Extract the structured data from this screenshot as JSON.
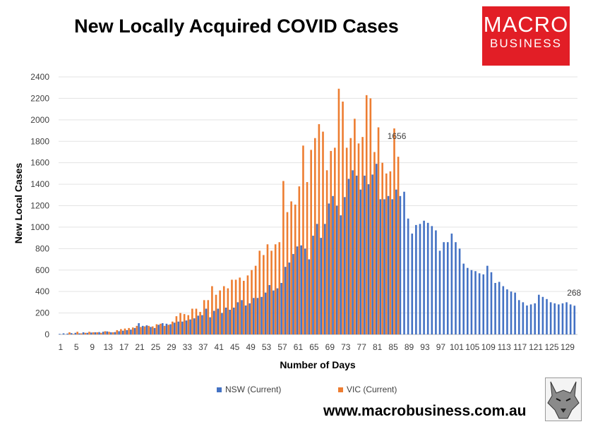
{
  "chart_data": {
    "type": "bar",
    "title": "New Locally Acquired COVID Cases",
    "xlabel": "Number of Days",
    "ylabel": "New Local Cases",
    "ylim": [
      0,
      2400
    ],
    "yticks": [
      0,
      200,
      400,
      600,
      800,
      1000,
      1200,
      1400,
      1600,
      1800,
      2000,
      2200,
      2400
    ],
    "xtick_labels": [
      1,
      5,
      9,
      13,
      17,
      21,
      25,
      29,
      33,
      37,
      41,
      45,
      49,
      53,
      57,
      61,
      65,
      69,
      73,
      77,
      81,
      85,
      89,
      93,
      97,
      101,
      105,
      109,
      113,
      117,
      121,
      125,
      129
    ],
    "legend_position": "bottom",
    "series": [
      {
        "name": "NSW (Current)",
        "color": "#4472c4",
        "end_label": "268",
        "values": [
          5,
          10,
          8,
          12,
          15,
          10,
          20,
          15,
          18,
          20,
          22,
          25,
          28,
          20,
          22,
          30,
          35,
          40,
          45,
          60,
          105,
          80,
          85,
          70,
          60,
          90,
          105,
          100,
          95,
          110,
          120,
          120,
          130,
          140,
          150,
          175,
          180,
          240,
          160,
          220,
          240,
          200,
          250,
          230,
          250,
          300,
          320,
          270,
          290,
          340,
          340,
          350,
          390,
          460,
          410,
          430,
          480,
          630,
          670,
          750,
          820,
          830,
          800,
          700,
          920,
          1030,
          900,
          1030,
          1220,
          1290,
          1200,
          1110,
          1280,
          1450,
          1530,
          1480,
          1350,
          1480,
          1400,
          1490,
          1590,
          1260,
          1260,
          1290,
          1260,
          1350,
          1290,
          1330,
          1080,
          940,
          1020,
          1030,
          1060,
          1040,
          1010,
          970,
          780,
          860,
          860,
          940,
          860,
          800,
          660,
          620,
          600,
          590,
          570,
          560,
          640,
          580,
          480,
          490,
          450,
          420,
          400,
          390,
          320,
          300,
          270,
          280,
          290,
          370,
          350,
          330,
          300,
          290,
          280,
          290,
          300,
          280,
          268
        ]
      },
      {
        "name": "VIC (Current)",
        "color": "#ed7d31",
        "end_label": "1656",
        "values": [
          0,
          0,
          20,
          5,
          25,
          10,
          15,
          25,
          20,
          20,
          15,
          30,
          25,
          20,
          40,
          50,
          55,
          60,
          65,
          80,
          70,
          75,
          80,
          75,
          95,
          100,
          80,
          90,
          120,
          170,
          200,
          190,
          180,
          240,
          240,
          210,
          320,
          320,
          450,
          370,
          410,
          450,
          430,
          510,
          510,
          530,
          500,
          550,
          600,
          640,
          780,
          740,
          840,
          780,
          840,
          860,
          1430,
          1140,
          1240,
          1210,
          1380,
          1760,
          1420,
          1720,
          1830,
          1960,
          1890,
          1530,
          1710,
          1740,
          2290,
          2170,
          1740,
          1830,
          2010,
          1780,
          1840,
          2230,
          2200,
          1700,
          1930,
          1600,
          1500,
          1520,
          1920,
          1656
        ]
      }
    ]
  },
  "legend": {
    "nsw_label": "NSW (Current)",
    "vic_label": "VIC (Current)"
  },
  "logo": {
    "line1": "MACRO",
    "line2": "BUSINESS"
  },
  "footer": {
    "url": "www.macrobusiness.com.au"
  },
  "icons": {
    "wolf": "wolf-logo-icon"
  }
}
